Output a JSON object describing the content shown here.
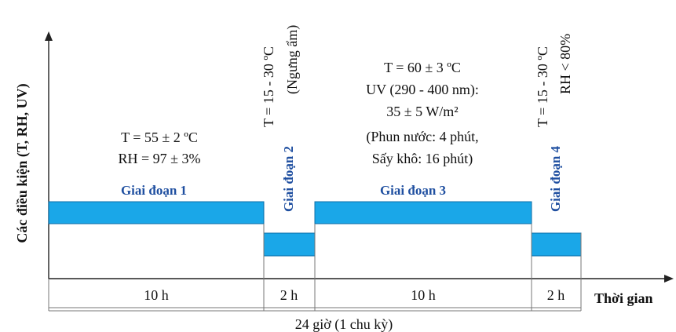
{
  "axis": {
    "ylabel": "Các điều kiện (T, RH, UV)",
    "xlabel": "Thời gian"
  },
  "stages": [
    {
      "name": "Giai đoạn 1",
      "condition_lines": [
        "T = 55 ± 2 ºC",
        "RH = 97 ± 3%"
      ],
      "duration": "10 h"
    },
    {
      "name": "Giai đoạn 2",
      "condition_lines": [
        "T = 15 - 30 ºC",
        "(Ngưng ẩm)"
      ],
      "duration": "2 h"
    },
    {
      "name": "Giai đoạn 3",
      "condition_lines": [
        "T = 60 ± 3 ºC",
        "UV (290 - 400 nm):",
        "35 ± 5 W/m²",
        "(Phun nước: 4 phút,",
        "Sấy khô: 16 phút)"
      ],
      "duration": "10 h"
    },
    {
      "name": "Giai đoạn 4",
      "condition_lines": [
        "T = 15 - 30 ºC",
        "RH < 80%"
      ],
      "duration": "2 h"
    }
  ],
  "cycle_label": "24 giờ (1 chu kỳ)",
  "colors": {
    "bar": "#1aa7e8",
    "stage_label": "#1f4fa0"
  }
}
